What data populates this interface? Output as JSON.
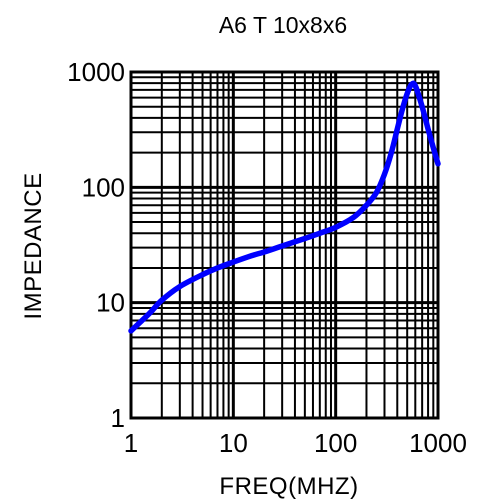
{
  "chart_data": {
    "type": "line",
    "title": "A6 T 10x8x6",
    "xlabel": "FREQ(MHZ)",
    "ylabel": "IMPEDANCE",
    "x_scale": "log",
    "y_scale": "log",
    "xlim": [
      1,
      1000
    ],
    "ylim": [
      1,
      1000
    ],
    "x_ticks": [
      "1",
      "10",
      "100",
      "1000"
    ],
    "y_ticks": [
      "1",
      "10",
      "100",
      "1000"
    ],
    "grid": true,
    "legend": "none",
    "series": [
      {
        "color": "#0000ff",
        "points": [
          [
            1,
            5.7
          ],
          [
            1.5,
            8.0
          ],
          [
            2,
            10.5
          ],
          [
            3,
            13.8
          ],
          [
            5,
            17.5
          ],
          [
            7,
            20
          ],
          [
            10,
            22.5
          ],
          [
            15,
            25.5
          ],
          [
            20,
            27.5
          ],
          [
            30,
            31
          ],
          [
            50,
            36
          ],
          [
            70,
            40
          ],
          [
            100,
            45
          ],
          [
            150,
            55
          ],
          [
            200,
            70
          ],
          [
            250,
            90
          ],
          [
            300,
            130
          ],
          [
            350,
            200
          ],
          [
            400,
            320
          ],
          [
            450,
            480
          ],
          [
            500,
            650
          ],
          [
            550,
            780
          ],
          [
            600,
            760
          ],
          [
            700,
            500
          ],
          [
            800,
            320
          ],
          [
            900,
            220
          ],
          [
            1000,
            160
          ]
        ]
      }
    ]
  }
}
